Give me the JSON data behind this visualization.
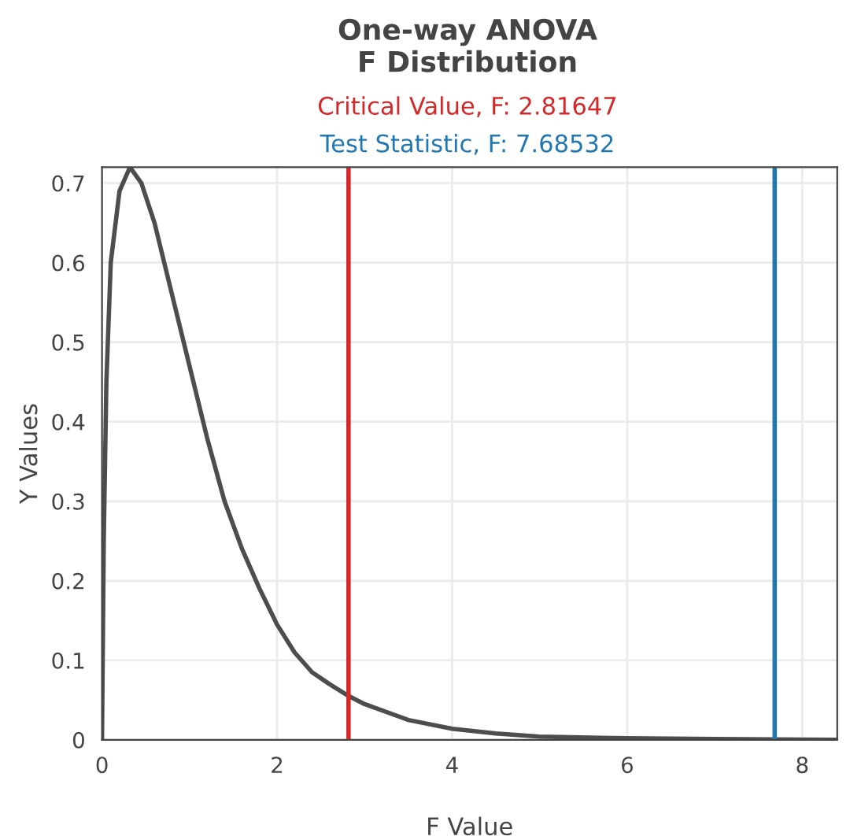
{
  "chart_data": {
    "type": "line",
    "title": "One-way ANOVA\nF Distribution",
    "xlabel": "F Value",
    "ylabel": "Y Values",
    "x": [
      0,
      0.02,
      0.05,
      0.1,
      0.2,
      0.32,
      0.45,
      0.6,
      0.8,
      1.0,
      1.2,
      1.4,
      1.6,
      1.8,
      2.0,
      2.2,
      2.4,
      2.6,
      2.82,
      3.0,
      3.5,
      4.0,
      4.5,
      5.0,
      6.0,
      7.0,
      8.4
    ],
    "series": [
      {
        "color": "#4d4d4d",
        "values": [
          0,
          0.25,
          0.45,
          0.6,
          0.69,
          0.72,
          0.7,
          0.65,
          0.56,
          0.47,
          0.38,
          0.3,
          0.24,
          0.19,
          0.145,
          0.11,
          0.085,
          0.07,
          0.055,
          0.045,
          0.025,
          0.014,
          0.008,
          0.004,
          0.002,
          0.001,
          0
        ]
      }
    ],
    "ref_lines": [
      {
        "axis": "x",
        "value": 2.81647,
        "label": "Critical Value, F: 2.81647",
        "color": "#d62728"
      },
      {
        "axis": "x",
        "value": 7.68532,
        "label": "Test Statistic, F: 7.68532",
        "color": "#1f77b4"
      }
    ],
    "xlim": [
      0,
      8.4
    ],
    "ylim": [
      0,
      0.72
    ],
    "xticks": [
      0,
      2,
      4,
      6,
      8
    ],
    "yticks": [
      0,
      0.1,
      0.2,
      0.3,
      0.4,
      0.5,
      0.6,
      0.7
    ],
    "grid": true,
    "marker": "none",
    "line_style": "solid",
    "legend": false
  }
}
